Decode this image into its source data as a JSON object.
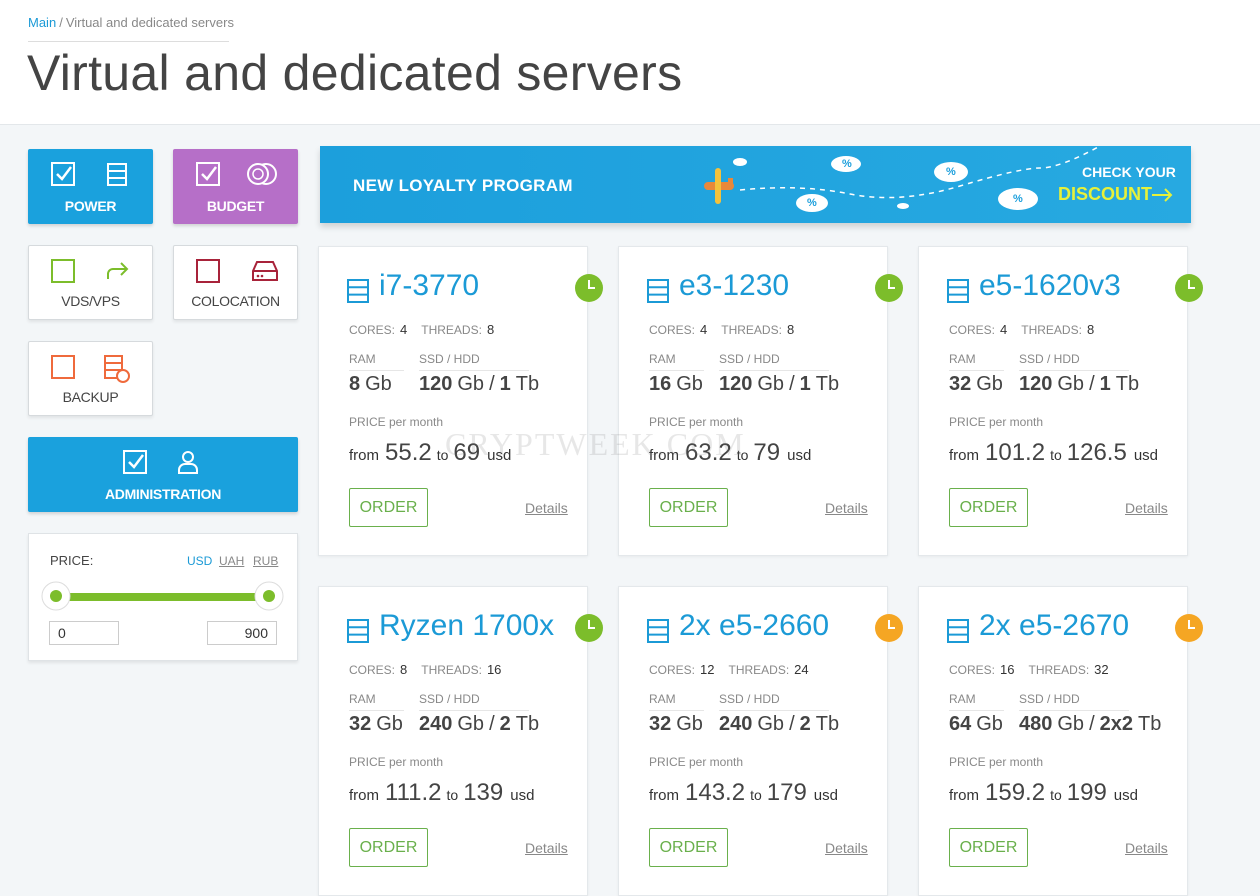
{
  "breadcrumb": {
    "home": "Main",
    "separator": "/",
    "current": "Virtual and dedicated servers"
  },
  "title": "Virtual and dedicated servers",
  "filters": {
    "power": "POWER",
    "budget": "BUDGET",
    "vds": "VDS/VPS",
    "colocation": "COLOCATION",
    "backup": "BACKUP",
    "administration": "ADMINISTRATION"
  },
  "price_filter": {
    "label": "PRICE:",
    "currencies": [
      "USD",
      "UAH",
      "RUB"
    ],
    "min": 0,
    "max": 900
  },
  "banner": {
    "title": "NEW LOYALTY PROGRAM",
    "cta_line1": "CHECK YOUR",
    "cta_line2": "DISCOUNT",
    "badge": "%"
  },
  "labels": {
    "cores": "CORES:",
    "threads": "THREADS:",
    "ram": "RAM",
    "storage": "SSD / HDD",
    "separator": "/",
    "price": "PRICE per month",
    "from": "from",
    "to": "to",
    "currency": "usd",
    "order": "ORDER",
    "details": "Details"
  },
  "servers": [
    {
      "name": "i7-3770",
      "cores": 4,
      "threads": 8,
      "ram": 8,
      "ram_unit": "Gb",
      "ssd": 120,
      "ssd_unit": "Gb",
      "hdd": 1,
      "hdd_unit": "Tb",
      "price_from": 55.2,
      "price_to": 69,
      "clock_color": "#7cbd2b"
    },
    {
      "name": "e3-1230",
      "cores": 4,
      "threads": 8,
      "ram": 16,
      "ram_unit": "Gb",
      "ssd": 120,
      "ssd_unit": "Gb",
      "hdd": 1,
      "hdd_unit": "Tb",
      "price_from": 63.2,
      "price_to": 79,
      "clock_color": "#7cbd2b"
    },
    {
      "name": "e5-1620v3",
      "cores": 4,
      "threads": 8,
      "ram": 32,
      "ram_unit": "Gb",
      "ssd": 120,
      "ssd_unit": "Gb",
      "hdd": 1,
      "hdd_unit": "Tb",
      "price_from": 101.2,
      "price_to": 126.5,
      "clock_color": "#7cbd2b"
    },
    {
      "name": "Ryzen 1700x",
      "cores": 8,
      "threads": 16,
      "ram": 32,
      "ram_unit": "Gb",
      "ssd": 240,
      "ssd_unit": "Gb",
      "hdd": 2,
      "hdd_unit": "Tb",
      "price_from": 111.2,
      "price_to": 139,
      "clock_color": "#7cbd2b"
    },
    {
      "name": "2x e5-2660",
      "cores": 12,
      "threads": 24,
      "ram": 32,
      "ram_unit": "Gb",
      "ssd": 240,
      "ssd_unit": "Gb",
      "hdd": 2,
      "hdd_unit": "Tb",
      "price_from": 143.2,
      "price_to": 179,
      "clock_color": "#f5a623"
    },
    {
      "name": "2x e5-2670",
      "cores": 16,
      "threads": 32,
      "ram": 64,
      "ram_unit": "Gb",
      "ssd": 480,
      "ssd_unit": "Gb",
      "hdd": "2x2",
      "hdd_unit": "Tb",
      "price_from": 159.2,
      "price_to": 199,
      "clock_color": "#f5a623"
    }
  ],
  "watermark": "CRYPTWEEK.COM"
}
